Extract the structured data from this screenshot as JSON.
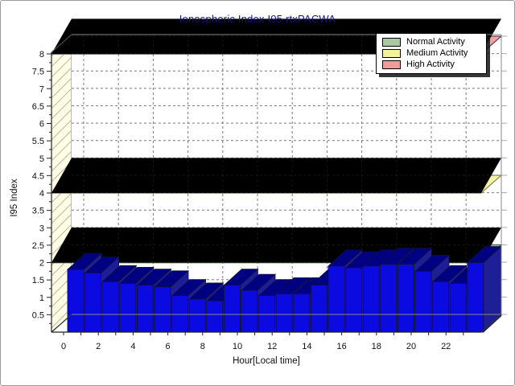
{
  "window": {
    "background": "#ffffff",
    "border_color": "#9a9a9a"
  },
  "chart_data": {
    "type": "bar",
    "projection": "3d",
    "title": "Ionospheric Index I95 rtxPACWA",
    "xlabel": "Hour[Local time]",
    "ylabel": "I95 Index",
    "categories": [
      0,
      1,
      2,
      3,
      4,
      5,
      6,
      7,
      8,
      9,
      10,
      11,
      12,
      13,
      14,
      15,
      16,
      17,
      18,
      19,
      20,
      21,
      22,
      23
    ],
    "values": [
      1.8,
      1.7,
      1.45,
      1.4,
      1.35,
      1.3,
      1.05,
      0.95,
      0.9,
      1.35,
      1.2,
      1.05,
      1.1,
      1.1,
      1.35,
      1.9,
      1.85,
      1.9,
      1.95,
      1.95,
      1.75,
      1.45,
      1.4,
      2.0
    ],
    "x_tick_labels": [
      "0",
      "2",
      "4",
      "6",
      "8",
      "10",
      "12",
      "14",
      "16",
      "18",
      "20",
      "22"
    ],
    "y_tick_labels": [
      "0.5",
      "1",
      "1.5",
      "2",
      "2.5",
      "3",
      "3.5",
      "4",
      "4.5",
      "5",
      "5.5",
      "6",
      "6.5",
      "7",
      "7.5",
      "8"
    ],
    "ylim": [
      0,
      8.4
    ],
    "grid": "dashed",
    "legend_position": "top-right",
    "thresholds": [
      {
        "label": "Normal Activity",
        "value": 2,
        "fill": "#b6d3ae",
        "edge": "#2f5c33"
      },
      {
        "label": "Medium Activity",
        "value": 4,
        "fill": "#f6f0a4",
        "edge": "#8a8a55"
      },
      {
        "label": "High Activity",
        "value": 8,
        "fill": "#f5a0a0",
        "edge": "#5c4a66"
      }
    ]
  },
  "legend": {
    "items": [
      {
        "label": "Normal Activity",
        "swatch": "#a9c9a1"
      },
      {
        "label": "Medium Activity",
        "swatch": "#f5efa2"
      },
      {
        "label": "High Activity",
        "swatch": "#f29b9b"
      }
    ]
  },
  "colors": {
    "bar_front": "#0b0be1",
    "bar_top": "#000082",
    "bar_side": "#1e1e97",
    "left_wall": "#fffde6",
    "wall_hatch": "#b9b9a4",
    "grid": "#909090",
    "title_text": "#15157d",
    "axis_text": "#111111"
  }
}
